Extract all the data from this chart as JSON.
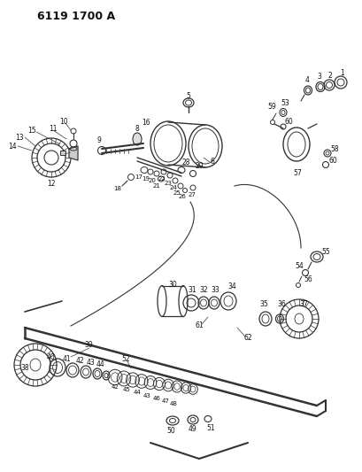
{
  "title": "6119 1700 A",
  "bg_color": "#ffffff",
  "line_color": "#333333",
  "text_color": "#111111",
  "fig_width": 4.1,
  "fig_height": 5.33,
  "dpi": 100
}
